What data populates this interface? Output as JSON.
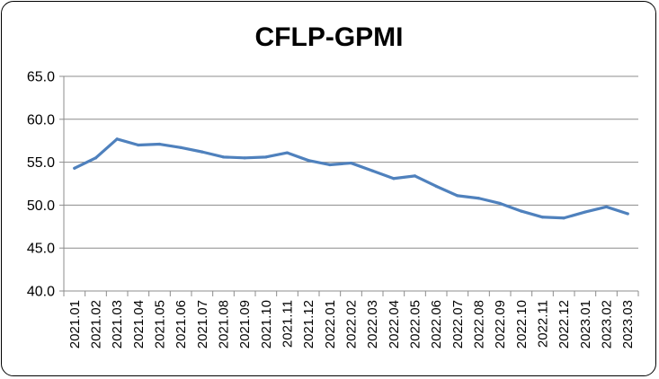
{
  "chart_data": {
    "type": "line",
    "title": "CFLP-GPMI",
    "xlabel": "",
    "ylabel": "",
    "ylim": [
      40,
      65
    ],
    "yticks": [
      "40.0",
      "45.0",
      "50.0",
      "55.0",
      "60.0",
      "65.0"
    ],
    "grid": true,
    "legend": "none",
    "line_color": "#4f81bd",
    "categories": [
      "2021.01",
      "2021.02",
      "2021.03",
      "2021.04",
      "2021.05",
      "2021.06",
      "2021.07",
      "2021.08",
      "2021.09",
      "2021.10",
      "2021.11",
      "2021.12",
      "2022.01",
      "2022.02",
      "2022.03",
      "2022.04",
      "2022.05",
      "2022.06",
      "2022.07",
      "2022.08",
      "2022.09",
      "2022.10",
      "2022.11",
      "2022.12",
      "2023.01",
      "2023.02",
      "2023.03"
    ],
    "series": [
      {
        "values": [
          54.3,
          55.5,
          57.7,
          57.0,
          57.1,
          56.7,
          56.2,
          55.6,
          55.5,
          55.6,
          56.1,
          55.2,
          54.7,
          54.9,
          54.0,
          53.1,
          53.4,
          52.2,
          51.1,
          50.8,
          50.2,
          49.3,
          48.6,
          48.5,
          49.2,
          49.8,
          49.0
        ]
      }
    ]
  }
}
